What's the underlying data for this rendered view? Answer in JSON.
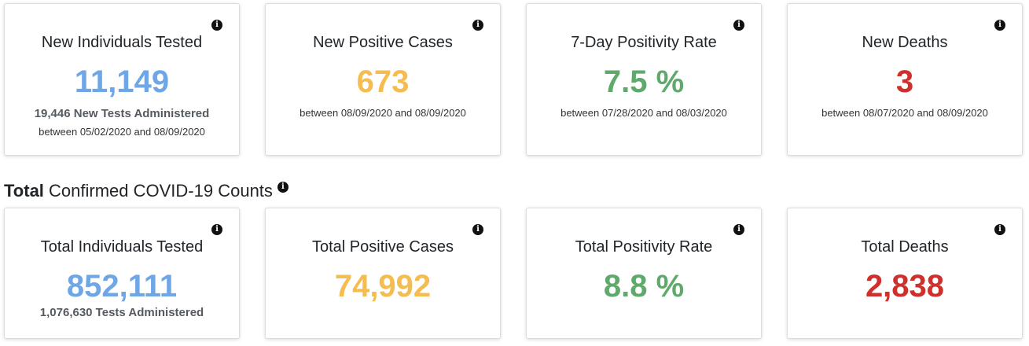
{
  "colors": {
    "blue": "#6ea6e6",
    "orange": "#f5bd4f",
    "green": "#5ea96b",
    "red": "#d0302b"
  },
  "info_icon_glyph": "i",
  "daily_cards": [
    {
      "title": "New Individuals Tested",
      "value": "11,149",
      "color": "blue",
      "sub": "19,446 New Tests Administered",
      "range": "between 05/02/2020 and 08/09/2020"
    },
    {
      "title": "New Positive Cases",
      "value": "673",
      "color": "orange",
      "range": "between 08/09/2020 and 08/09/2020"
    },
    {
      "title": "7-Day Positivity Rate",
      "value": "7.5 %",
      "color": "green",
      "range": "between 07/28/2020 and 08/03/2020"
    },
    {
      "title": "New Deaths",
      "value": "3",
      "color": "red",
      "range": "between 08/07/2020 and 08/09/2020"
    }
  ],
  "section": {
    "heading_bold": "Total",
    "heading_rest": " Confirmed COVID-19 Counts"
  },
  "total_cards": [
    {
      "title": "Total Individuals Tested",
      "value": "852,111",
      "color": "blue",
      "sub": "1,076,630 Tests Administered"
    },
    {
      "title": "Total Positive Cases",
      "value": "74,992",
      "color": "orange"
    },
    {
      "title": "Total Positivity Rate",
      "value": "8.8 %",
      "color": "green"
    },
    {
      "title": "Total Deaths",
      "value": "2,838",
      "color": "red"
    }
  ]
}
